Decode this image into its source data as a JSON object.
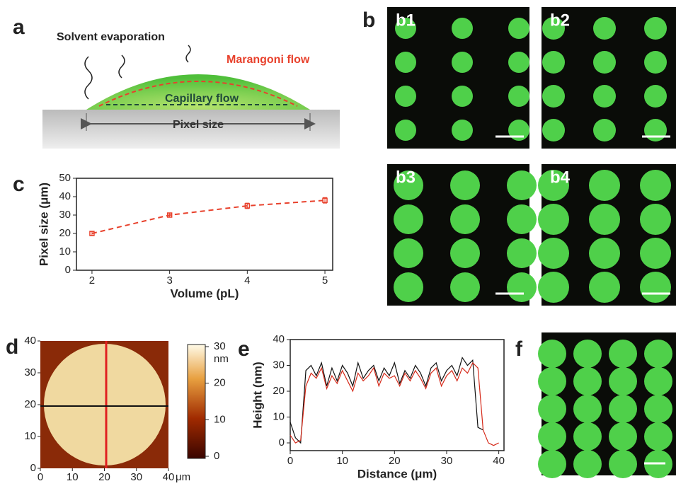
{
  "panel_labels": [
    "a",
    "b",
    "c",
    "d",
    "e",
    "f"
  ],
  "schematic": {
    "evaporation": "Solvent evaporation",
    "marangoni": "Marangoni flow",
    "capillary": "Capillary flow",
    "pixel_size": "Pixel size"
  },
  "images": [
    "b1",
    "b2",
    "b3",
    "b4"
  ],
  "afm": {
    "xlim": [
      0,
      40
    ],
    "ylim": [
      0,
      40
    ],
    "xticks": [
      0,
      10,
      20,
      30,
      40
    ],
    "yticks": [
      0,
      10,
      20,
      30,
      40
    ],
    "unit": "μm",
    "colorbar_lim": [
      0,
      30
    ],
    "colorbar_ticks": [
      0,
      10,
      20,
      30
    ],
    "colorbar_unit": "nm"
  },
  "chart_data": [
    {
      "type": "line",
      "xlabel": "Volume (pL)",
      "ylabel": "Pixel size (μm)",
      "x": [
        2,
        3,
        4,
        5
      ],
      "xlim": [
        1.8,
        5.1
      ],
      "xticks": [
        2,
        3,
        4,
        5
      ],
      "ylim": [
        0,
        50
      ],
      "yticks": [
        0,
        10,
        20,
        30,
        40,
        50
      ],
      "line_style": "dashed",
      "markers": true,
      "series": [
        {
          "color": "#e8412c",
          "values": [
            20,
            30,
            35,
            38
          ],
          "errors": [
            1,
            1,
            1.5,
            1.5
          ]
        }
      ]
    },
    {
      "type": "line",
      "xlabel": "Distance (μm)",
      "ylabel": "Height (nm)",
      "x": [
        0,
        1,
        2,
        3,
        4,
        5,
        6,
        7,
        8,
        9,
        10,
        11,
        12,
        13,
        14,
        15,
        16,
        17,
        18,
        19,
        20,
        21,
        22,
        23,
        24,
        25,
        26,
        27,
        28,
        29,
        30,
        31,
        32,
        33,
        34,
        35,
        36,
        37,
        38,
        39,
        40
      ],
      "xlim": [
        0,
        41
      ],
      "xticks": [
        0,
        10,
        20,
        30,
        40
      ],
      "ylim": [
        -3,
        40
      ],
      "yticks": [
        0,
        10,
        20,
        30,
        40
      ],
      "line_style": "solid",
      "markers": false,
      "series": [
        {
          "color": "#111111",
          "values": [
            8,
            2,
            0,
            28,
            30,
            26,
            31,
            22,
            29,
            24,
            30,
            27,
            22,
            31,
            25,
            28,
            30,
            24,
            29,
            26,
            31,
            23,
            28,
            25,
            30,
            27,
            22,
            29,
            31,
            24,
            28,
            30,
            26,
            33,
            30,
            32,
            6,
            5,
            null,
            null,
            null
          ]
        },
        {
          "color": "#d62a1a",
          "values": [
            3,
            0,
            1,
            22,
            27,
            25,
            29,
            21,
            26,
            23,
            28,
            24,
            20,
            27,
            24,
            26,
            29,
            22,
            27,
            25,
            26,
            22,
            27,
            24,
            28,
            25,
            21,
            27,
            29,
            22,
            26,
            28,
            24,
            29,
            27,
            31,
            29,
            5,
            0,
            -1,
            0
          ]
        }
      ]
    }
  ]
}
